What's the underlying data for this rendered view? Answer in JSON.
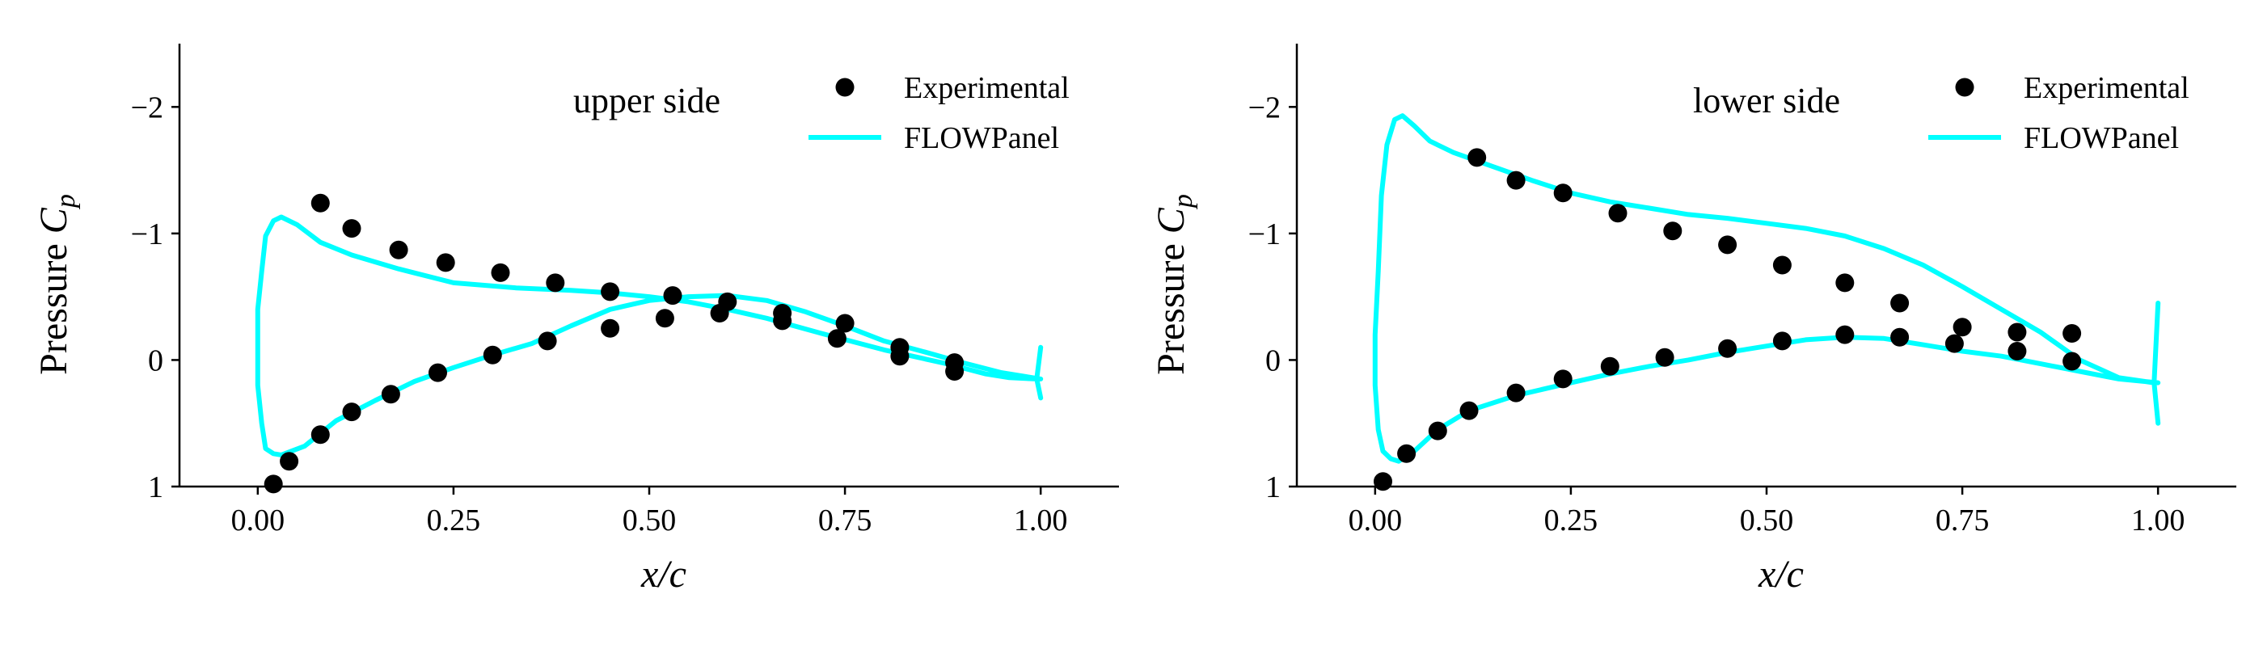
{
  "chart_data": [
    {
      "type": "scatter",
      "annotation": "upper side",
      "xlabel": "x/c",
      "ylabel_prefix": "Pressure ",
      "ylabel_symbol": "C",
      "ylabel_subscript": "p",
      "xlim": [
        -0.1,
        1.1
      ],
      "ylim": [
        1,
        -2.5
      ],
      "y_inverted": true,
      "xticks": [
        0.0,
        0.25,
        0.5,
        0.75,
        1.0
      ],
      "xtick_labels": [
        "0.00",
        "0.25",
        "0.50",
        "0.75",
        "1.00"
      ],
      "yticks": [
        -2,
        -1,
        0,
        1
      ],
      "ytick_labels": [
        "−2",
        "−1",
        "0",
        "1"
      ],
      "grid": false,
      "legend_position": "top-right",
      "series": [
        {
          "name": "Experimental",
          "kind": "scatter",
          "color": "#000000",
          "points": [
            [
              0.02,
              0.98
            ],
            [
              0.04,
              0.8
            ],
            [
              0.08,
              0.59
            ],
            [
              0.12,
              0.41
            ],
            [
              0.17,
              0.27
            ],
            [
              0.23,
              0.1
            ],
            [
              0.3,
              -0.04
            ],
            [
              0.37,
              -0.15
            ],
            [
              0.45,
              -0.25
            ],
            [
              0.52,
              -0.33
            ],
            [
              0.59,
              -0.37
            ],
            [
              0.67,
              -0.31
            ],
            [
              0.74,
              -0.17
            ],
            [
              0.82,
              -0.03
            ],
            [
              0.89,
              0.09
            ],
            [
              0.08,
              -1.24
            ],
            [
              0.12,
              -1.04
            ],
            [
              0.18,
              -0.87
            ],
            [
              0.24,
              -0.77
            ],
            [
              0.31,
              -0.69
            ],
            [
              0.38,
              -0.61
            ],
            [
              0.45,
              -0.54
            ],
            [
              0.53,
              -0.51
            ],
            [
              0.6,
              -0.46
            ],
            [
              0.67,
              -0.37
            ],
            [
              0.75,
              -0.29
            ],
            [
              0.82,
              -0.1
            ],
            [
              0.89,
              0.02
            ]
          ]
        },
        {
          "name": "FLOWPanel",
          "kind": "line",
          "color": "#00ffff",
          "points": [
            [
              1.0,
              0.3
            ],
            [
              0.995,
              0.15
            ],
            [
              1.0,
              -0.1
            ],
            [
              0.995,
              0.15
            ],
            [
              0.96,
              0.14
            ],
            [
              0.93,
              0.11
            ],
            [
              0.88,
              0.03
            ],
            [
              0.8,
              -0.08
            ],
            [
              0.72,
              -0.21
            ],
            [
              0.65,
              -0.33
            ],
            [
              0.6,
              -0.4
            ],
            [
              0.55,
              -0.46
            ],
            [
              0.5,
              -0.5
            ],
            [
              0.45,
              -0.53
            ],
            [
              0.4,
              -0.55
            ],
            [
              0.33,
              -0.57
            ],
            [
              0.25,
              -0.61
            ],
            [
              0.18,
              -0.72
            ],
            [
              0.12,
              -0.83
            ],
            [
              0.08,
              -0.93
            ],
            [
              0.05,
              -1.07
            ],
            [
              0.03,
              -1.13
            ],
            [
              0.02,
              -1.1
            ],
            [
              0.01,
              -0.98
            ],
            [
              0.005,
              -0.7
            ],
            [
              0.0,
              -0.4
            ],
            [
              0.0,
              0.2
            ],
            [
              0.005,
              0.5
            ],
            [
              0.01,
              0.7
            ],
            [
              0.02,
              0.74
            ],
            [
              0.03,
              0.75
            ],
            [
              0.06,
              0.68
            ],
            [
              0.1,
              0.48
            ],
            [
              0.15,
              0.32
            ],
            [
              0.2,
              0.17
            ],
            [
              0.25,
              0.06
            ],
            [
              0.3,
              -0.04
            ],
            [
              0.35,
              -0.13
            ],
            [
              0.4,
              -0.27
            ],
            [
              0.45,
              -0.4
            ],
            [
              0.5,
              -0.47
            ],
            [
              0.55,
              -0.5
            ],
            [
              0.6,
              -0.51
            ],
            [
              0.65,
              -0.47
            ],
            [
              0.7,
              -0.38
            ],
            [
              0.75,
              -0.27
            ],
            [
              0.8,
              -0.15
            ],
            [
              0.86,
              -0.05
            ],
            [
              0.9,
              0.02
            ],
            [
              0.95,
              0.1
            ],
            [
              1.0,
              0.15
            ]
          ]
        }
      ]
    },
    {
      "type": "scatter",
      "annotation": "lower side",
      "xlabel": "x/c",
      "ylabel_prefix": "Pressure ",
      "ylabel_symbol": "C",
      "ylabel_subscript": "p",
      "xlim": [
        -0.1,
        1.1
      ],
      "ylim": [
        1,
        -2.5
      ],
      "y_inverted": true,
      "xticks": [
        0.0,
        0.25,
        0.5,
        0.75,
        1.0
      ],
      "xtick_labels": [
        "0.00",
        "0.25",
        "0.50",
        "0.75",
        "1.00"
      ],
      "yticks": [
        -2,
        -1,
        0,
        1
      ],
      "ytick_labels": [
        "−2",
        "−1",
        "0",
        "1"
      ],
      "grid": false,
      "legend_position": "top-right",
      "series": [
        {
          "name": "Experimental",
          "kind": "scatter",
          "color": "#000000",
          "points": [
            [
              0.01,
              0.96
            ],
            [
              0.04,
              0.74
            ],
            [
              0.08,
              0.56
            ],
            [
              0.12,
              0.4
            ],
            [
              0.18,
              0.26
            ],
            [
              0.24,
              0.15
            ],
            [
              0.3,
              0.05
            ],
            [
              0.37,
              -0.02
            ],
            [
              0.45,
              -0.09
            ],
            [
              0.52,
              -0.15
            ],
            [
              0.6,
              -0.2
            ],
            [
              0.67,
              -0.18
            ],
            [
              0.74,
              -0.13
            ],
            [
              0.82,
              -0.07
            ],
            [
              0.89,
              0.01
            ],
            [
              0.13,
              -1.6
            ],
            [
              0.18,
              -1.42
            ],
            [
              0.24,
              -1.32
            ],
            [
              0.31,
              -1.16
            ],
            [
              0.38,
              -1.02
            ],
            [
              0.45,
              -0.91
            ],
            [
              0.52,
              -0.75
            ],
            [
              0.6,
              -0.61
            ],
            [
              0.67,
              -0.45
            ],
            [
              0.75,
              -0.26
            ],
            [
              0.82,
              -0.22
            ],
            [
              0.89,
              -0.21
            ]
          ]
        },
        {
          "name": "FLOWPanel",
          "kind": "line",
          "color": "#00ffff",
          "points": [
            [
              1.0,
              0.5
            ],
            [
              0.995,
              0.18
            ],
            [
              1.0,
              -0.45
            ],
            [
              0.995,
              0.18
            ],
            [
              0.95,
              0.14
            ],
            [
              0.9,
              0.0
            ],
            [
              0.85,
              -0.22
            ],
            [
              0.8,
              -0.4
            ],
            [
              0.75,
              -0.58
            ],
            [
              0.7,
              -0.75
            ],
            [
              0.65,
              -0.88
            ],
            [
              0.6,
              -0.98
            ],
            [
              0.55,
              -1.04
            ],
            [
              0.5,
              -1.08
            ],
            [
              0.45,
              -1.12
            ],
            [
              0.4,
              -1.15
            ],
            [
              0.35,
              -1.2
            ],
            [
              0.3,
              -1.25
            ],
            [
              0.25,
              -1.32
            ],
            [
              0.2,
              -1.42
            ],
            [
              0.15,
              -1.53
            ],
            [
              0.1,
              -1.64
            ],
            [
              0.07,
              -1.73
            ],
            [
              0.05,
              -1.85
            ],
            [
              0.035,
              -1.93
            ],
            [
              0.025,
              -1.9
            ],
            [
              0.015,
              -1.7
            ],
            [
              0.008,
              -1.3
            ],
            [
              0.004,
              -0.7
            ],
            [
              0.0,
              -0.2
            ],
            [
              0.0,
              0.2
            ],
            [
              0.004,
              0.55
            ],
            [
              0.01,
              0.72
            ],
            [
              0.02,
              0.78
            ],
            [
              0.03,
              0.8
            ],
            [
              0.05,
              0.72
            ],
            [
              0.08,
              0.55
            ],
            [
              0.12,
              0.4
            ],
            [
              0.18,
              0.28
            ],
            [
              0.25,
              0.18
            ],
            [
              0.3,
              0.11
            ],
            [
              0.35,
              0.05
            ],
            [
              0.4,
              0.0
            ],
            [
              0.45,
              -0.06
            ],
            [
              0.5,
              -0.11
            ],
            [
              0.55,
              -0.16
            ],
            [
              0.6,
              -0.18
            ],
            [
              0.65,
              -0.17
            ],
            [
              0.7,
              -0.12
            ],
            [
              0.75,
              -0.07
            ],
            [
              0.8,
              -0.03
            ],
            [
              0.85,
              0.03
            ],
            [
              0.9,
              0.09
            ],
            [
              0.95,
              0.15
            ],
            [
              1.0,
              0.18
            ]
          ]
        }
      ]
    }
  ]
}
